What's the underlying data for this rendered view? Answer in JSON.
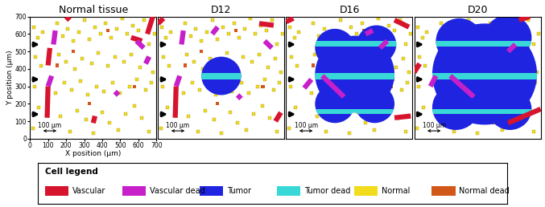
{
  "chart_data": [
    {
      "type": "scatter",
      "title": "Normal tissue",
      "x_label": "X position (µm)",
      "y_label": "Y position (µm)",
      "xlim": [
        0,
        700
      ],
      "ylim": [
        0,
        700
      ],
      "xticks": [
        0,
        100,
        200,
        300,
        400,
        500,
        600,
        700
      ],
      "yticks": [
        0,
        100,
        200,
        300,
        400,
        500,
        600,
        700
      ],
      "tick_labels": true,
      "tumor": [],
      "dead_bands": [],
      "vessels": [
        {
          "x": [
            100,
            110
          ],
          "y": [
            420,
            520
          ],
          "status": "Vascular"
        },
        {
          "x": [
            95,
            100
          ],
          "y": [
            120,
            300
          ],
          "status": "Vascular"
        },
        {
          "x": [
            560,
            620
          ],
          "y": [
            580,
            560
          ],
          "status": "Vascular"
        },
        {
          "x": [
            650,
            680
          ],
          "y": [
            600,
            700
          ],
          "status": "Vascular"
        },
        {
          "x": [
            350,
            360
          ],
          "y": [
            90,
            130
          ],
          "status": "Vascular"
        },
        {
          "x": [
            200,
            220
          ],
          "y": [
            680,
            700
          ],
          "status": "Vascular"
        },
        {
          "x": [
            100,
            120
          ],
          "y": [
            300,
            360
          ],
          "status": "Vascular dead"
        },
        {
          "x": [
            130,
            140
          ],
          "y": [
            540,
            620
          ],
          "status": "Vascular dead"
        },
        {
          "x": [
            590,
            630
          ],
          "y": [
            560,
            520
          ],
          "status": "Vascular dead"
        },
        {
          "x": [
            640,
            660
          ],
          "y": [
            430,
            470
          ],
          "status": "Vascular dead"
        },
        {
          "x": [
            470,
            490
          ],
          "y": [
            250,
            270
          ],
          "status": "Vascular dead"
        }
      ]
    },
    {
      "type": "scatter",
      "title": "D12",
      "xlim": [
        0,
        700
      ],
      "ylim": [
        0,
        700
      ],
      "tick_labels": false,
      "tumor": [
        [
          350,
          360,
          110
        ]
      ],
      "dead_bands": [
        [
          340,
          375
        ]
      ],
      "vessels": [
        {
          "x": [
            95,
            100
          ],
          "y": [
            120,
            300
          ],
          "status": "Vascular"
        },
        {
          "x": [
            560,
            640
          ],
          "y": [
            660,
            650
          ],
          "status": "Vascular"
        },
        {
          "x": [
            650,
            680
          ],
          "y": [
            100,
            150
          ],
          "status": "Vascular"
        },
        {
          "x": [
            0,
            30
          ],
          "y": [
            660,
            690
          ],
          "status": "Vascular"
        },
        {
          "x": [
            100,
            120
          ],
          "y": [
            300,
            360
          ],
          "status": "Vascular dead"
        },
        {
          "x": [
            130,
            140
          ],
          "y": [
            540,
            620
          ],
          "status": "Vascular dead"
        },
        {
          "x": [
            590,
            630
          ],
          "y": [
            560,
            520
          ],
          "status": "Vascular dead"
        },
        {
          "x": [
            300,
            330
          ],
          "y": [
            600,
            640
          ],
          "status": "Vascular dead"
        },
        {
          "x": [
            440,
            460
          ],
          "y": [
            230,
            250
          ],
          "status": "Vascular dead"
        }
      ]
    },
    {
      "type": "scatter",
      "title": "D16",
      "xlim": [
        0,
        700
      ],
      "ylim": [
        0,
        700
      ],
      "tick_labels": false,
      "tumor": [
        [
          380,
          370,
          220
        ],
        [
          270,
          520,
          110
        ],
        [
          500,
          540,
          110
        ],
        [
          270,
          200,
          110
        ],
        [
          490,
          200,
          110
        ]
      ],
      "dead_bands": [
        [
          530,
          560
        ],
        [
          340,
          375
        ],
        [
          140,
          170
        ]
      ],
      "vessels": [
        {
          "x": [
            600,
            680
          ],
          "y": [
            680,
            640
          ],
          "status": "Vascular"
        },
        {
          "x": [
            600,
            690
          ],
          "y": [
            120,
            130
          ],
          "status": "Vascular"
        },
        {
          "x": [
            0,
            40
          ],
          "y": [
            670,
            690
          ],
          "status": "Vascular"
        },
        {
          "x": [
            200,
            320
          ],
          "y": [
            360,
            240
          ],
          "status": "Vascular dead"
        },
        {
          "x": [
            100,
            140
          ],
          "y": [
            290,
            340
          ],
          "status": "Vascular dead"
        },
        {
          "x": [
            520,
            560
          ],
          "y": [
            520,
            560
          ],
          "status": "Vascular dead"
        },
        {
          "x": [
            440,
            480
          ],
          "y": [
            600,
            620
          ],
          "status": "Vascular dead"
        }
      ]
    },
    {
      "type": "scatter",
      "title": "D20",
      "xlim": [
        0,
        700
      ],
      "ylim": [
        0,
        700
      ],
      "tick_labels": false,
      "tumor": [
        [
          390,
          370,
          290
        ],
        [
          250,
          560,
          130
        ],
        [
          520,
          580,
          130
        ],
        [
          230,
          180,
          130
        ],
        [
          530,
          170,
          120
        ]
      ],
      "dead_bands": [
        [
          530,
          560
        ],
        [
          340,
          375
        ],
        [
          140,
          170
        ]
      ],
      "vessels": [
        {
          "x": [
            520,
            700
          ],
          "y": [
            90,
            170
          ],
          "status": "Vascular"
        },
        {
          "x": [
            0,
            30
          ],
          "y": [
            380,
            430
          ],
          "status": "Vascular"
        },
        {
          "x": [
            580,
            640
          ],
          "y": [
            680,
            700
          ],
          "status": "Vascular"
        },
        {
          "x": [
            200,
            330
          ],
          "y": [
            360,
            240
          ],
          "status": "Vascular dead"
        },
        {
          "x": [
            90,
            120
          ],
          "y": [
            300,
            360
          ],
          "status": "Vascular dead"
        },
        {
          "x": [
            520,
            560
          ],
          "y": [
            500,
            540
          ],
          "status": "Vascular dead"
        }
      ]
    }
  ],
  "normal_cells": {
    "x": [
      20,
      45,
      70,
      150,
      180,
      210,
      240,
      270,
      300,
      330,
      360,
      390,
      420,
      450,
      480,
      510,
      540,
      570,
      600,
      630,
      660,
      690,
      30,
      60,
      160,
      200,
      250,
      290,
      340,
      380,
      430,
      470,
      520,
      560,
      610,
      650,
      680,
      25,
      140,
      190,
      230,
      280,
      320,
      370,
      410,
      460,
      500,
      550,
      590,
      640,
      670,
      50,
      170,
      260,
      310,
      400,
      440,
      530,
      580,
      620,
      15,
      220,
      350,
      490,
      660
    ],
    "y": [
      640,
      580,
      610,
      660,
      590,
      630,
      560,
      610,
      680,
      570,
      640,
      600,
      660,
      580,
      630,
      690,
      600,
      650,
      620,
      680,
      540,
      600,
      470,
      420,
      480,
      440,
      400,
      460,
      430,
      490,
      420,
      470,
      440,
      480,
      410,
      460,
      380,
      300,
      260,
      320,
      280,
      330,
      250,
      300,
      270,
      320,
      260,
      300,
      340,
      280,
      320,
      180,
      130,
      160,
      110,
      150,
      90,
      140,
      190,
      120,
      60,
      40,
      30,
      50,
      40
    ]
  },
  "normal_dead_cells": {
    "x": [
      240,
      430,
      580,
      330,
      150
    ],
    "y": [
      500,
      620,
      300,
      200,
      420
    ]
  },
  "status": {
    "normal": "Normal",
    "normal_dead": "Normal dead",
    "tumor": "Tumor",
    "tumor_dead": "Tumor dead"
  },
  "arrows_y": [
    540,
    340,
    140
  ],
  "scale_bar": {
    "length": 100,
    "label": "100 µm"
  },
  "legend_box": {
    "title": "Cell legend",
    "entries": [
      {
        "name": "Vascular",
        "color": "#d7142d"
      },
      {
        "name": "Vascular dead",
        "color": "#c71fc9"
      },
      {
        "name": "Tumor",
        "color": "#1f24e0"
      },
      {
        "name": "Tumor dead",
        "color": "#38d8d8"
      },
      {
        "name": "Normal",
        "color": "#f2dc1c"
      },
      {
        "name": "Normal dead",
        "color": "#d2581a"
      }
    ]
  }
}
